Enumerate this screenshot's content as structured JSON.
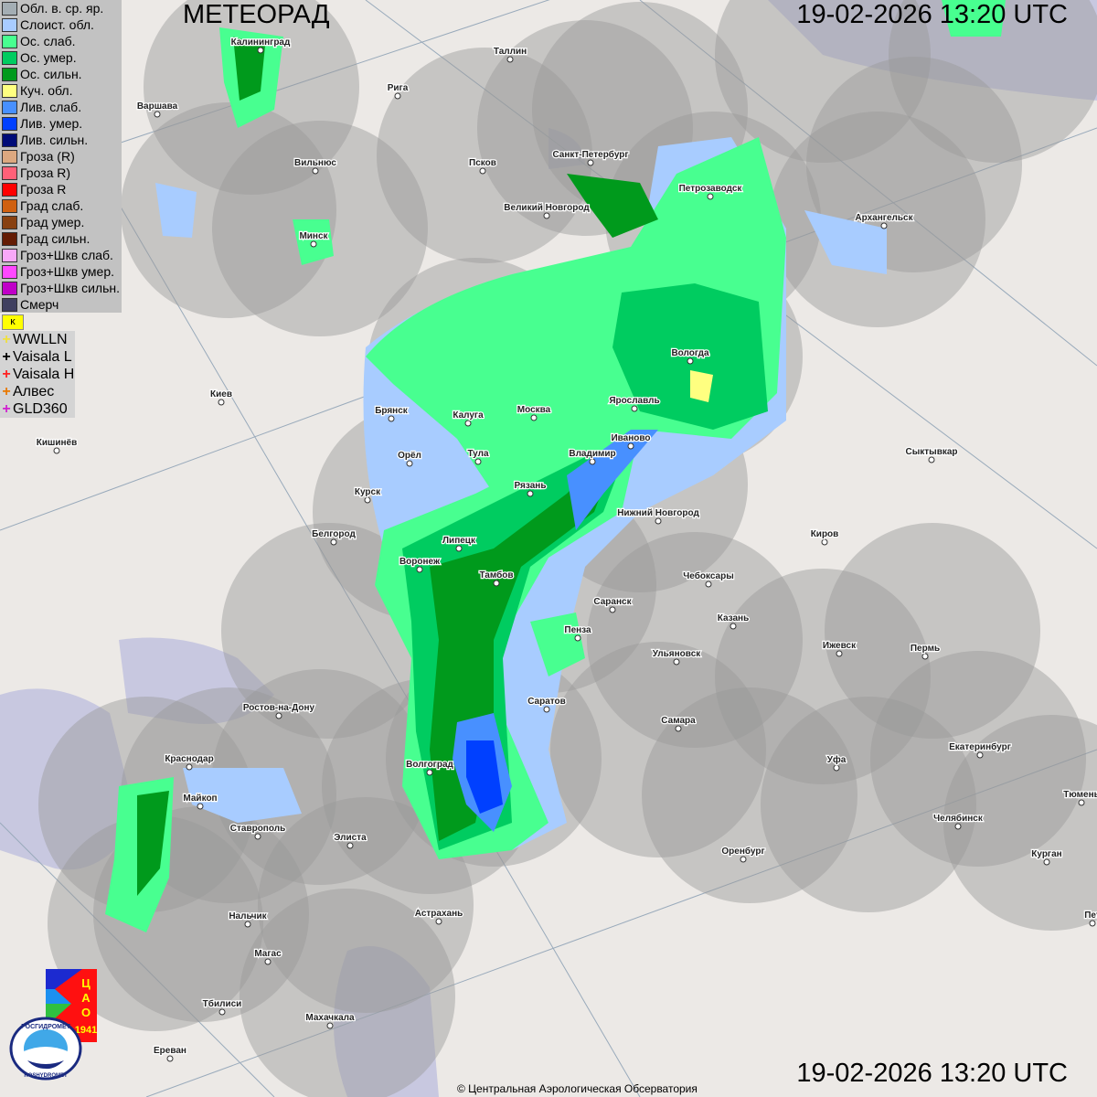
{
  "header": {
    "title": "МЕТЕОРАД",
    "datetime_top": "19-02-2026  13:20 UTC",
    "datetime_bottom": "19-02-2026  13:20 UTC"
  },
  "legend": [
    {
      "label": "Обл. в. ср. яр.",
      "color": "#a4aeb4"
    },
    {
      "label": "Слоист. обл.",
      "color": "#a8ccff"
    },
    {
      "label": "Ос. слаб.",
      "color": "#48ff90"
    },
    {
      "label": "Ос. умер.",
      "color": "#00cc60"
    },
    {
      "label": "Ос. сильн.",
      "color": "#009a1c"
    },
    {
      "label": "Куч. обл.",
      "color": "#ffff80"
    },
    {
      "label": "Лив. слаб.",
      "color": "#4890ff"
    },
    {
      "label": "Лив. умер.",
      "color": "#0040ff"
    },
    {
      "label": "Лив. сильн.",
      "color": "#000c78"
    },
    {
      "label": "Гроза (R)",
      "color": "#dca880"
    },
    {
      "label": "Гроза R)",
      "color": "#ff6078"
    },
    {
      "label": "Гроза R",
      "color": "#ff0000"
    },
    {
      "label": "Град слаб.",
      "color": "#d06010"
    },
    {
      "label": "Град умер.",
      "color": "#884010"
    },
    {
      "label": "Град сильн.",
      "color": "#641c04"
    },
    {
      "label": "Гроз+Шкв слаб.",
      "color": "#f8a8f8"
    },
    {
      "label": "Гроз+Шкв умер.",
      "color": "#ff48ff"
    },
    {
      "label": "Гроз+Шкв сильн.",
      "color": "#c000c8"
    },
    {
      "label": "Смерч",
      "color": "#404060"
    }
  ],
  "lightning_flag": "ᴋ",
  "lightning": [
    {
      "label": "WWLLN",
      "color": "#f0e040"
    },
    {
      "label": "Vaisala L",
      "color": "#000000"
    },
    {
      "label": "Vaisala H",
      "color": "#ff2020"
    },
    {
      "label": "Алвес",
      "color": "#e87800"
    },
    {
      "label": "GLD360",
      "color": "#d020d0"
    }
  ],
  "cities": [
    "Калининград",
    "Таллин",
    "Рига",
    "Варшава",
    "Санкт-Петербург",
    "Псков",
    "Вильнюс",
    "Петрозаводск",
    "Великий Новгород",
    "Архангельск",
    "Минск",
    "Вологда",
    "Ярославль",
    "Киев",
    "Брянск",
    "Калуга",
    "Москва",
    "Иваново",
    "Кишинёв",
    "Тула",
    "Владимир",
    "Орёл",
    "Сыктывкар",
    "Рязань",
    "Курск",
    "Нижний Новгород",
    "Белгород",
    "Киров",
    "Липецк",
    "Воронеж",
    "Тамбов",
    "Чебоксары",
    "Саранск",
    "Казань",
    "Пенза",
    "Ижевск",
    "Пермь",
    "Ульяновск",
    "Ростов-на-Дону",
    "Саратов",
    "Самара",
    "Екатеринбург",
    "Краснодар",
    "Уфа",
    "Волгоград",
    "Тюмень",
    "Майкоп",
    "Челябинск",
    "Ставрополь",
    "Элиста",
    "Оренбург",
    "Курган",
    "Нальчик",
    "Астрахань",
    "Магас",
    "Тбилиси",
    "Махачкала",
    "Ереван",
    "Пет"
  ],
  "logos": {
    "cao_letters": "ЦАО",
    "cao_year": "1941",
    "roshydromet_ru": "РОСГИДРОМЕТ",
    "roshydromet_en": "ROSHYDROMET"
  },
  "copyright": "© Центральная Аэрологическая Обсерватория"
}
